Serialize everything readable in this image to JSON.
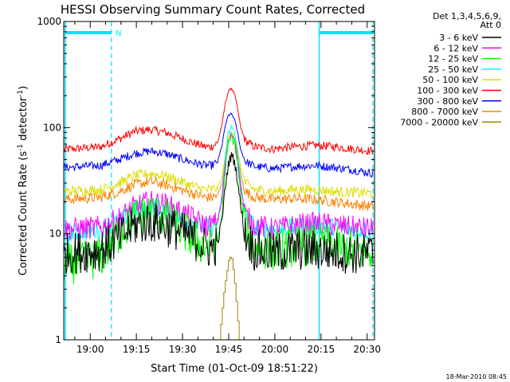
{
  "chart_data": {
    "type": "line",
    "title": "HESSI Observing Summary Count Rates, Corrected",
    "xlabel": "Start Time (01-Oct-09 18:51:22)",
    "ylabel_main": "Corrected Count Rate (s",
    "ylabel_sup1": "-1",
    "ylabel_mid": " detector",
    "ylabel_sup2": "-1",
    "ylabel_end": ")",
    "yscale": "log",
    "ylim": [
      1,
      1000
    ],
    "x_unit": "minutes after 18:51:22",
    "xlim": [
      0,
      101
    ],
    "x_ticks": [
      {
        "label": "19:00",
        "x": 8.6
      },
      {
        "label": "19:15",
        "x": 23.6
      },
      {
        "label": "19:30",
        "x": 38.6
      },
      {
        "label": "19:45",
        "x": 53.6
      },
      {
        "label": "20:00",
        "x": 68.6
      },
      {
        "label": "20:15",
        "x": 83.6
      },
      {
        "label": "20:30",
        "x": 98.6
      }
    ],
    "y_ticks": [
      {
        "label": "1",
        "y": 1
      },
      {
        "label": "10",
        "y": 10
      },
      {
        "label": "100",
        "y": 100
      },
      {
        "label": "1000",
        "y": 1000
      }
    ],
    "legend_header": [
      "Det 1,3,4,5,6,9,",
      "Att 0"
    ],
    "legend_position": "top-right (outside plot)",
    "night_label": "N",
    "night_bars": [
      [
        0.5,
        15.5
      ],
      [
        83.0,
        100.5
      ]
    ],
    "cyan_lines": [
      0.5,
      83.0
    ],
    "dashed_lines": [
      15.5,
      100.5
    ],
    "timestamp": "18-Mar-2010 08:45",
    "series": [
      {
        "name": "3 - 6 keV",
        "color": "#000000",
        "x": [
          0,
          12,
          18,
          23,
          28,
          33,
          38,
          42,
          46,
          48,
          50,
          51.5,
          52.5,
          53.5,
          54.5,
          55.5,
          56.5,
          57.5,
          59,
          62,
          68,
          75,
          82,
          88,
          94,
          100.5
        ],
        "y": [
          6.5,
          7.0,
          9.0,
          12.0,
          13.0,
          12.0,
          10.5,
          9.0,
          7.5,
          7.2,
          8.0,
          14.0,
          28.0,
          45.0,
          55.0,
          48.0,
          32.0,
          18.0,
          10.0,
          7.0,
          6.5,
          7.0,
          7.0,
          6.8,
          6.5,
          6.5
        ]
      },
      {
        "name": "6 - 12 keV",
        "color": "#ff00ff",
        "x": [
          0,
          12,
          18,
          23,
          28,
          33,
          38,
          42,
          46,
          48,
          50,
          51.5,
          52.5,
          53.5,
          54.5,
          55.5,
          56.5,
          57.5,
          59,
          62,
          68,
          75,
          82,
          88,
          94,
          100.5
        ],
        "y": [
          11.0,
          11.5,
          14.0,
          18.0,
          20.0,
          19.0,
          16.0,
          14.0,
          12.0,
          12.0,
          13.0,
          22.0,
          45.0,
          72.0,
          88.0,
          78.0,
          50.0,
          28.0,
          15.0,
          12.0,
          11.0,
          12.0,
          12.5,
          12.0,
          11.5,
          11.0
        ]
      },
      {
        "name": "12 - 25 keV",
        "color": "#00ff00",
        "x": [
          0,
          12,
          18,
          23,
          28,
          33,
          38,
          42,
          46,
          48,
          50,
          51.5,
          52.5,
          53.5,
          54.5,
          55.5,
          56.5,
          57.5,
          59,
          62,
          68,
          75,
          82,
          88,
          94,
          100.5
        ],
        "y": [
          5.0,
          6.0,
          10.0,
          14.0,
          16.0,
          14.0,
          11.0,
          9.0,
          7.5,
          7.5,
          8.5,
          16.0,
          40.0,
          70.0,
          82.0,
          72.0,
          45.0,
          22.0,
          11.0,
          7.5,
          7.0,
          7.5,
          8.0,
          7.5,
          7.0,
          6.5
        ]
      },
      {
        "name": "25 - 50 keV",
        "color": "#00ffff",
        "x": [
          0,
          12,
          18,
          23,
          28,
          33,
          38,
          42,
          46,
          48,
          50,
          51.5,
          52.5,
          53.5,
          54.5,
          55.5,
          56.5,
          57.5,
          59,
          62,
          68,
          75,
          82,
          88,
          94,
          100.5
        ],
        "y": [
          10.0,
          11.0,
          13.0,
          16.5,
          18.0,
          17.0,
          14.0,
          12.5,
          11.5,
          11.5,
          12.5,
          24.0,
          55.0,
          90.0,
          102.0,
          92.0,
          60.0,
          30.0,
          15.0,
          11.5,
          11.0,
          11.5,
          12.0,
          11.5,
          11.0,
          10.5
        ]
      },
      {
        "name": "50 - 100 keV",
        "color": "#dddd00",
        "x": [
          0,
          12,
          18,
          23,
          28,
          33,
          38,
          42,
          46,
          48,
          50,
          51.5,
          52.5,
          53.5,
          54.5,
          55.5,
          56.5,
          57.5,
          59,
          62,
          68,
          75,
          82,
          88,
          94,
          100.5
        ],
        "y": [
          25.0,
          26.0,
          30.0,
          35.0,
          37.0,
          35.0,
          31.0,
          28.0,
          26.0,
          26.0,
          27.0,
          34.0,
          55.0,
          80.0,
          92.0,
          85.0,
          62.0,
          42.0,
          30.0,
          26.0,
          25.0,
          26.0,
          26.0,
          25.0,
          24.5,
          24.0
        ]
      },
      {
        "name": "100 - 300 keV",
        "color": "#ff0000",
        "x": [
          0,
          12,
          18,
          23,
          28,
          33,
          38,
          42,
          46,
          48,
          50,
          51.5,
          52.5,
          53.5,
          54.5,
          55.5,
          56.5,
          57.5,
          59,
          62,
          68,
          75,
          82,
          88,
          94,
          100.5
        ],
        "y": [
          62.0,
          66.0,
          78.0,
          92.0,
          96.0,
          90.0,
          80.0,
          72.0,
          66.0,
          66.0,
          72.0,
          110.0,
          170.0,
          220.0,
          235.0,
          210.0,
          150.0,
          100.0,
          75.0,
          66.0,
          63.0,
          66.0,
          68.0,
          66.0,
          63.0,
          60.0
        ]
      },
      {
        "name": "300 - 800 keV",
        "color": "#0000ff",
        "x": [
          0,
          12,
          18,
          23,
          28,
          33,
          38,
          42,
          46,
          48,
          50,
          51.5,
          52.5,
          53.5,
          54.5,
          55.5,
          56.5,
          57.5,
          59,
          62,
          68,
          75,
          82,
          88,
          94,
          100.5
        ],
        "y": [
          42.0,
          44.0,
          50.0,
          57.0,
          60.0,
          57.0,
          51.0,
          47.0,
          44.0,
          44.0,
          47.0,
          70.0,
          105.0,
          130.0,
          135.0,
          120.0,
          90.0,
          62.0,
          48.0,
          43.0,
          41.0,
          43.0,
          44.0,
          42.0,
          40.0,
          37.0
        ]
      },
      {
        "name": "800 - 7000 keV",
        "color": "#ff8000",
        "x": [
          0,
          12,
          18,
          23,
          28,
          33,
          38,
          42,
          46,
          48,
          50,
          51.5,
          52.5,
          53.5,
          54.5,
          55.5,
          56.5,
          57.5,
          59,
          62,
          68,
          75,
          82,
          88,
          94,
          100.5
        ],
        "y": [
          21.0,
          22.0,
          25.0,
          29.0,
          31.0,
          29.0,
          26.0,
          24.0,
          22.0,
          22.0,
          23.0,
          30.0,
          52.0,
          75.0,
          85.0,
          78.0,
          55.0,
          36.0,
          25.0,
          22.0,
          21.0,
          21.5,
          21.0,
          20.0,
          19.0,
          18.0
        ]
      },
      {
        "name": "7000 - 20000 keV",
        "color": "#a08000",
        "x": [
          50.5,
          51.0,
          51.5,
          52.0,
          52.5,
          53.0,
          53.5,
          54.0,
          54.5,
          55.0,
          55.5,
          56.0,
          56.5,
          57.0
        ],
        "y": [
          1.0,
          1.4,
          2.0,
          2.8,
          3.6,
          4.5,
          5.6,
          6.0,
          5.8,
          4.6,
          3.4,
          2.3,
          1.5,
          1.0
        ]
      }
    ]
  }
}
